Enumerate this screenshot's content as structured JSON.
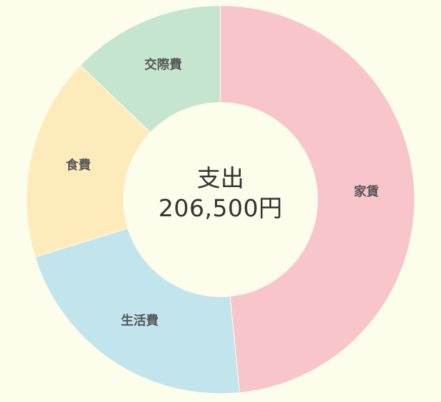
{
  "chart_data": {
    "type": "pie",
    "variant": "donut",
    "categories": [
      "家賃",
      "生活費",
      "食費",
      "交際費"
    ],
    "values": [
      100000,
      45000,
      35000,
      26500
    ],
    "colors": [
      "#f7c5ca",
      "#c2e4ec",
      "#fdebbc",
      "#c5e5cf"
    ],
    "start_angle_deg": 0,
    "direction": "clockwise",
    "center_title": "支出",
    "center_value": "206,500",
    "center_unit": "円"
  }
}
